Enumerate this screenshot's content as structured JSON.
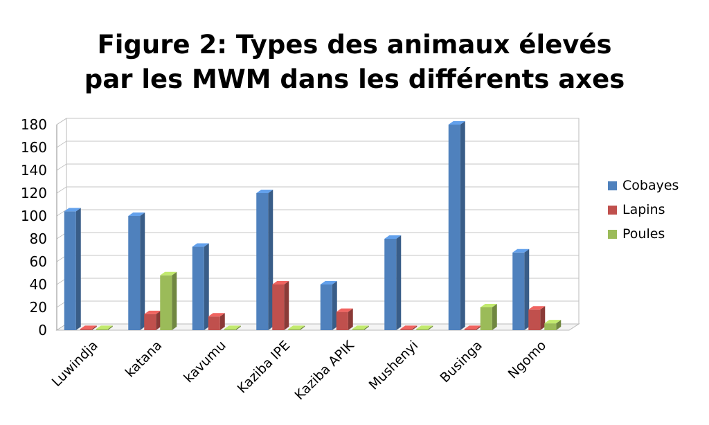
{
  "chart_data": {
    "type": "bar",
    "title_lines": [
      "Figure 2: Types des animaux élevés",
      "par les MWM dans les différents axes"
    ],
    "xlabel": "",
    "ylabel": "",
    "ylim": [
      0,
      180
    ],
    "yticks": [
      "0",
      "20",
      "40",
      "60",
      "80",
      "100",
      "120",
      "140",
      "160",
      "180"
    ],
    "grid": true,
    "legend_position": "right",
    "categories": [
      "Luwindja",
      "katana",
      "kavumu",
      "Kaziba IPE",
      "Kaziba APIK",
      "Mushenyi",
      "Businga",
      "Ngomo"
    ],
    "series": [
      {
        "name": "Cobayes",
        "color": "#4F81BD",
        "values": [
          104,
          100,
          73,
          120,
          40,
          80,
          180,
          68
        ]
      },
      {
        "name": "Lapins",
        "color": "#C0504D",
        "values": [
          1,
          14,
          12,
          40,
          16,
          1,
          1,
          18
        ]
      },
      {
        "name": "Poules",
        "color": "#9BBB59",
        "values": [
          1,
          48,
          1,
          1,
          1,
          1,
          20,
          6
        ]
      }
    ]
  }
}
